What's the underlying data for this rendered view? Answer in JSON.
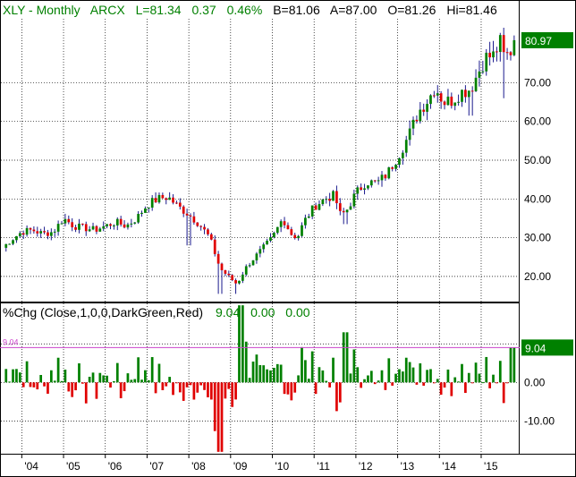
{
  "colors": {
    "up": "#008000",
    "down": "#e00000",
    "wick": "#1a1a8c",
    "header_text": "#008000",
    "tag_bg": "#008000",
    "ref_line": "#cc44cc",
    "grid": "#000000"
  },
  "header": {
    "symbol": "XLY - Monthly",
    "exchange": "ARCX",
    "last": "L=81.34",
    "change": "0.37",
    "pct": "0.46%",
    "bid": "B=81.06",
    "ask": "A=87.00",
    "open": "O=81.26",
    "high": "Hi=81.46"
  },
  "price_tag": "80.97",
  "indicator": {
    "title": "%Chg (Close,1,0,0,DarkGreen,Red)",
    "v1": "9.04",
    "v2": "0.00",
    "v3": "0.00",
    "tag": "9.04",
    "ref_label": "9.04"
  },
  "chart_data": [
    {
      "type": "candlestick",
      "title": "XLY - Monthly",
      "y_ticks": [
        "20.00",
        "30.00",
        "40.00",
        "50.00",
        "60.00",
        "70.00"
      ],
      "y_tick_values": [
        20,
        30,
        40,
        50,
        60,
        70
      ],
      "x_ticks": [
        "'04",
        "'05",
        "'06",
        "'07",
        "'08",
        "'09",
        "'10",
        "'11",
        "'12",
        "'13",
        "'14",
        "'15"
      ],
      "x_tick_values": [
        2004,
        2005,
        2006,
        2007,
        2008,
        2009,
        2010,
        2011,
        2012,
        2013,
        2014,
        2015
      ],
      "ylim": [
        13.5,
        86.5
      ],
      "xlim": [
        2003.5,
        2015.9
      ],
      "grid": true,
      "last_price": 80.97,
      "close_anchors": [
        [
          2003.5,
          27.0
        ],
        [
          2003.75,
          29.5
        ],
        [
          2004.0,
          31.5
        ],
        [
          2004.25,
          32.0
        ],
        [
          2004.5,
          31.0
        ],
        [
          2004.75,
          31.5
        ],
        [
          2005.0,
          35.0
        ],
        [
          2005.25,
          33.0
        ],
        [
          2005.5,
          32.5
        ],
        [
          2005.75,
          32.0
        ],
        [
          2006.0,
          33.0
        ],
        [
          2006.25,
          34.0
        ],
        [
          2006.5,
          33.0
        ],
        [
          2006.75,
          35.0
        ],
        [
          2007.0,
          38.5
        ],
        [
          2007.25,
          40.0
        ],
        [
          2007.5,
          40.5
        ],
        [
          2007.75,
          38.0
        ],
        [
          2008.0,
          36.0
        ],
        [
          2008.25,
          33.5
        ],
        [
          2008.5,
          30.0
        ],
        [
          2008.75,
          22.0
        ],
        [
          2009.0,
          19.5
        ],
        [
          2009.15,
          18.0
        ],
        [
          2009.35,
          22.0
        ],
        [
          2009.5,
          24.0
        ],
        [
          2009.75,
          27.0
        ],
        [
          2010.0,
          30.0
        ],
        [
          2010.25,
          35.0
        ],
        [
          2010.45,
          31.0
        ],
        [
          2010.6,
          30.0
        ],
        [
          2010.75,
          34.0
        ],
        [
          2011.0,
          38.0
        ],
        [
          2011.25,
          40.0
        ],
        [
          2011.5,
          41.0
        ],
        [
          2011.6,
          36.0
        ],
        [
          2011.75,
          36.5
        ],
        [
          2012.0,
          41.5
        ],
        [
          2012.25,
          44.5
        ],
        [
          2012.5,
          44.0
        ],
        [
          2012.75,
          46.5
        ],
        [
          2013.0,
          51.0
        ],
        [
          2013.25,
          56.0
        ],
        [
          2013.5,
          62.5
        ],
        [
          2013.75,
          66.0
        ],
        [
          2013.9,
          69.0
        ],
        [
          2014.1,
          65.0
        ],
        [
          2014.3,
          65.5
        ],
        [
          2014.5,
          67.5
        ],
        [
          2014.75,
          68.5
        ],
        [
          2014.9,
          72.0
        ],
        [
          2015.1,
          76.5
        ],
        [
          2015.3,
          77.0
        ],
        [
          2015.45,
          80.5
        ],
        [
          2015.55,
          76.5
        ],
        [
          2015.7,
          78.0
        ],
        [
          2015.8,
          80.97
        ]
      ],
      "low_spikes": [
        [
          2008.0,
          28.0
        ],
        [
          2008.75,
          15.5
        ],
        [
          2009.15,
          15.5
        ],
        [
          2011.75,
          33.5
        ],
        [
          2014.75,
          61.5
        ],
        [
          2015.55,
          66.0
        ]
      ]
    },
    {
      "type": "bar",
      "title": "%Chg (Close,1,0,0,DarkGreen,Red)",
      "y_ticks": [
        "0.00",
        "-10.00"
      ],
      "y_tick_values": [
        0,
        -10
      ],
      "ylim": [
        -18.5,
        20.5
      ],
      "reference_value": 9.04,
      "last_value": 9.04,
      "notable_bars": [
        [
          2008.75,
          -18.0
        ],
        [
          2009.25,
          20.0
        ],
        [
          2011.75,
          13.0
        ],
        [
          2015.75,
          9.04
        ]
      ]
    }
  ]
}
